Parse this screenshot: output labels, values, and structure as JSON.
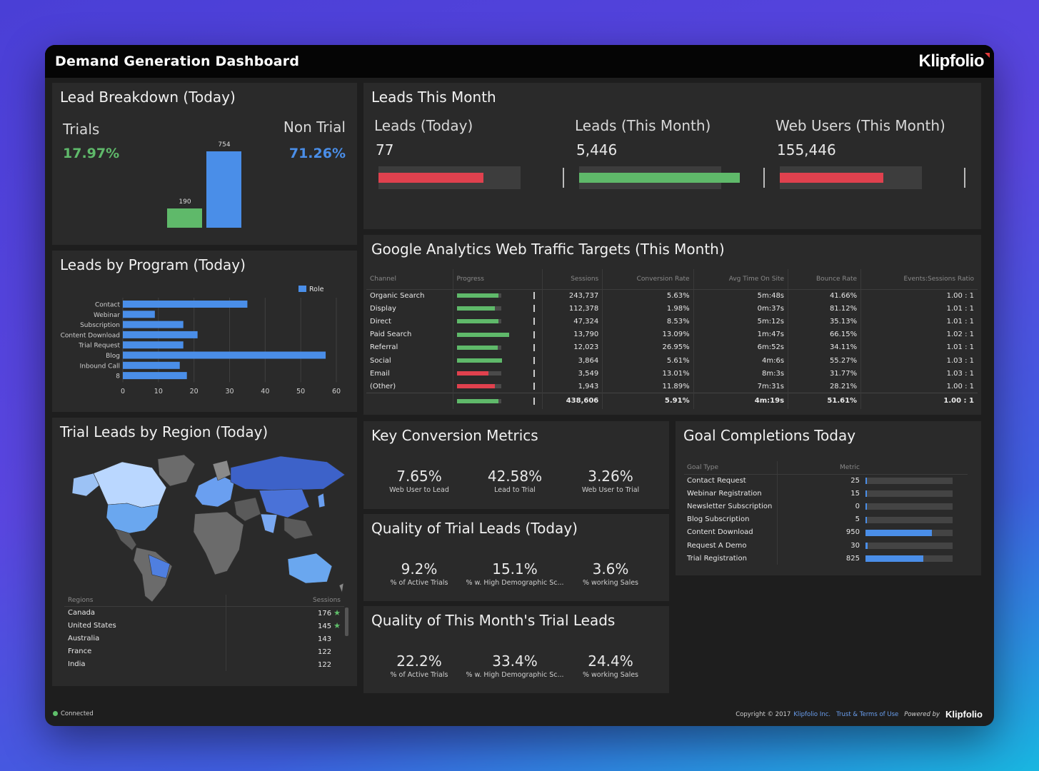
{
  "header": {
    "title": "Demand Generation Dashboard",
    "brand": "Klipfolio"
  },
  "lead_breakdown": {
    "title": "Lead Breakdown (Today)",
    "left_label": "Trials",
    "left_pct": "17.97%",
    "right_label": "Non Trial",
    "right_pct": "71.26%",
    "bars": [
      {
        "value": 190,
        "label": "190",
        "color": "#5fb96a"
      },
      {
        "value": 754,
        "label": "754",
        "color": "#4a8ee8"
      }
    ]
  },
  "leads_this_month": {
    "title": "Leads This Month",
    "items": [
      {
        "label": "Leads (Today)",
        "value": "77",
        "fill": 0.74,
        "color": "#e0414e"
      },
      {
        "label": "Leads (This Month)",
        "value": "5,446",
        "fill": 1.13,
        "color": "#5fb96a"
      },
      {
        "label": "Web Users (This Month)",
        "value": "155,446",
        "fill": 0.73,
        "color": "#e0414e"
      }
    ]
  },
  "leads_by_program": {
    "title": "Leads by Program (Today)",
    "chart_data": {
      "type": "bar",
      "orientation": "horizontal",
      "categories": [
        "Contact",
        "Webinar",
        "Subscription",
        "Content Download",
        "Trial Request",
        "Blog",
        "Inbound Call",
        "8"
      ],
      "series": [
        {
          "name": "Role",
          "values": [
            35,
            9,
            17,
            21,
            17,
            57,
            16,
            18
          ],
          "color": "#4a8ee8"
        }
      ],
      "xticks": [
        "0",
        "10",
        "20",
        "30",
        "40",
        "50",
        "60"
      ],
      "xlim": [
        0,
        60
      ],
      "legend": "top-right"
    }
  },
  "ga": {
    "title": "Google Analytics Web Traffic Targets (This Month)",
    "columns": [
      "Channel",
      "Progress",
      "Sessions",
      "Conversion Rate",
      "Avg Time On Site",
      "Bounce Rate",
      "Events:Sessions Ratio"
    ],
    "rows": [
      {
        "channel": "Organic Search",
        "progress": 0.95,
        "color": "#5fb96a",
        "sessions": "243,737",
        "conv": "5.63%",
        "time": "5m:48s",
        "bounce": "41.66%",
        "ratio": "1.00 : 1"
      },
      {
        "channel": "Display",
        "progress": 0.87,
        "color": "#5fb96a",
        "sessions": "112,378",
        "conv": "1.98%",
        "time": "0m:37s",
        "bounce": "81.12%",
        "ratio": "1.01 : 1"
      },
      {
        "channel": "Direct",
        "progress": 0.95,
        "color": "#5fb96a",
        "sessions": "47,324",
        "conv": "8.53%",
        "time": "5m:12s",
        "bounce": "35.13%",
        "ratio": "1.01 : 1"
      },
      {
        "channel": "Paid Search",
        "progress": 1.18,
        "color": "#5fb96a",
        "sessions": "13,790",
        "conv": "13.09%",
        "time": "1m:47s",
        "bounce": "66.15%",
        "ratio": "1.02 : 1"
      },
      {
        "channel": "Referral",
        "progress": 0.92,
        "color": "#5fb96a",
        "sessions": "12,023",
        "conv": "26.95%",
        "time": "6m:52s",
        "bounce": "34.11%",
        "ratio": "1.01 : 1"
      },
      {
        "channel": "Social",
        "progress": 1.03,
        "color": "#5fb96a",
        "sessions": "3,864",
        "conv": "5.61%",
        "time": "4m:6s",
        "bounce": "55.27%",
        "ratio": "1.03 : 1"
      },
      {
        "channel": "Email",
        "progress": 0.71,
        "color": "#e0414e",
        "sessions": "3,549",
        "conv": "13.01%",
        "time": "8m:3s",
        "bounce": "31.77%",
        "ratio": "1.03 : 1"
      },
      {
        "channel": "(Other)",
        "progress": 0.87,
        "color": "#e0414e",
        "sessions": "1,943",
        "conv": "11.89%",
        "time": "7m:31s",
        "bounce": "28.21%",
        "ratio": "1.00 : 1"
      }
    ],
    "total": {
      "progress": 0.95,
      "color": "#5fb96a",
      "sessions": "438,606",
      "conv": "5.91%",
      "time": "4m:19s",
      "bounce": "51.61%",
      "ratio": "1.00 : 1"
    }
  },
  "key_conversion": {
    "title": "Key Conversion Metrics",
    "metrics": [
      {
        "value": "7.65%",
        "label": "Web User to Lead"
      },
      {
        "value": "42.58%",
        "label": "Lead to Trial"
      },
      {
        "value": "3.26%",
        "label": "Web User to Trial"
      }
    ]
  },
  "quality_today": {
    "title": "Quality of Trial Leads (Today)",
    "metrics": [
      {
        "value": "9.2%",
        "label": "% of Active Trials"
      },
      {
        "value": "15.1%",
        "label": "% w. High Demographic Sc..."
      },
      {
        "value": "3.6%",
        "label": "% working Sales"
      }
    ]
  },
  "quality_month": {
    "title": "Quality of This Month's Trial Leads",
    "metrics": [
      {
        "value": "22.2%",
        "label": "% of Active Trials"
      },
      {
        "value": "33.4%",
        "label": "% w. High Demographic Sc..."
      },
      {
        "value": "24.4%",
        "label": "% working Sales"
      }
    ]
  },
  "goals": {
    "title": "Goal Completions Today",
    "col_type": "Goal Type",
    "col_metric": "Metric",
    "max": 1250,
    "rows": [
      {
        "name": "Contact Request",
        "value": "25",
        "num": 25
      },
      {
        "name": "Webinar Registration",
        "value": "15",
        "num": 15
      },
      {
        "name": "Newsletter Subscription",
        "value": "0",
        "num": 0
      },
      {
        "name": "Blog Subscription",
        "value": "5",
        "num": 5
      },
      {
        "name": "Content Download",
        "value": "950",
        "num": 950
      },
      {
        "name": "Request A Demo",
        "value": "30",
        "num": 30
      },
      {
        "name": "Trial Registration",
        "value": "825",
        "num": 825
      }
    ]
  },
  "regions": {
    "title": "Trial Leads by Region (Today)",
    "col_region": "Regions",
    "col_sessions": "Sessions",
    "rows": [
      {
        "name": "Canada",
        "value": "176",
        "star": true
      },
      {
        "name": "United States",
        "value": "145",
        "star": true
      },
      {
        "name": "Australia",
        "value": "143",
        "star": false
      },
      {
        "name": "France",
        "value": "122",
        "star": false
      },
      {
        "name": "India",
        "value": "122",
        "star": false
      }
    ]
  },
  "footer": {
    "status": "Connected",
    "copyright": "Copyright © 2017",
    "company": "Klipfolio Inc.",
    "terms": "Trust & Terms of Use",
    "powered": "Powered by",
    "brand": "Klipfolio"
  },
  "colors": {
    "green": "#5fb96a",
    "red": "#e0414e",
    "blue": "#4a8ee8",
    "panel": "#2a2a2a"
  }
}
